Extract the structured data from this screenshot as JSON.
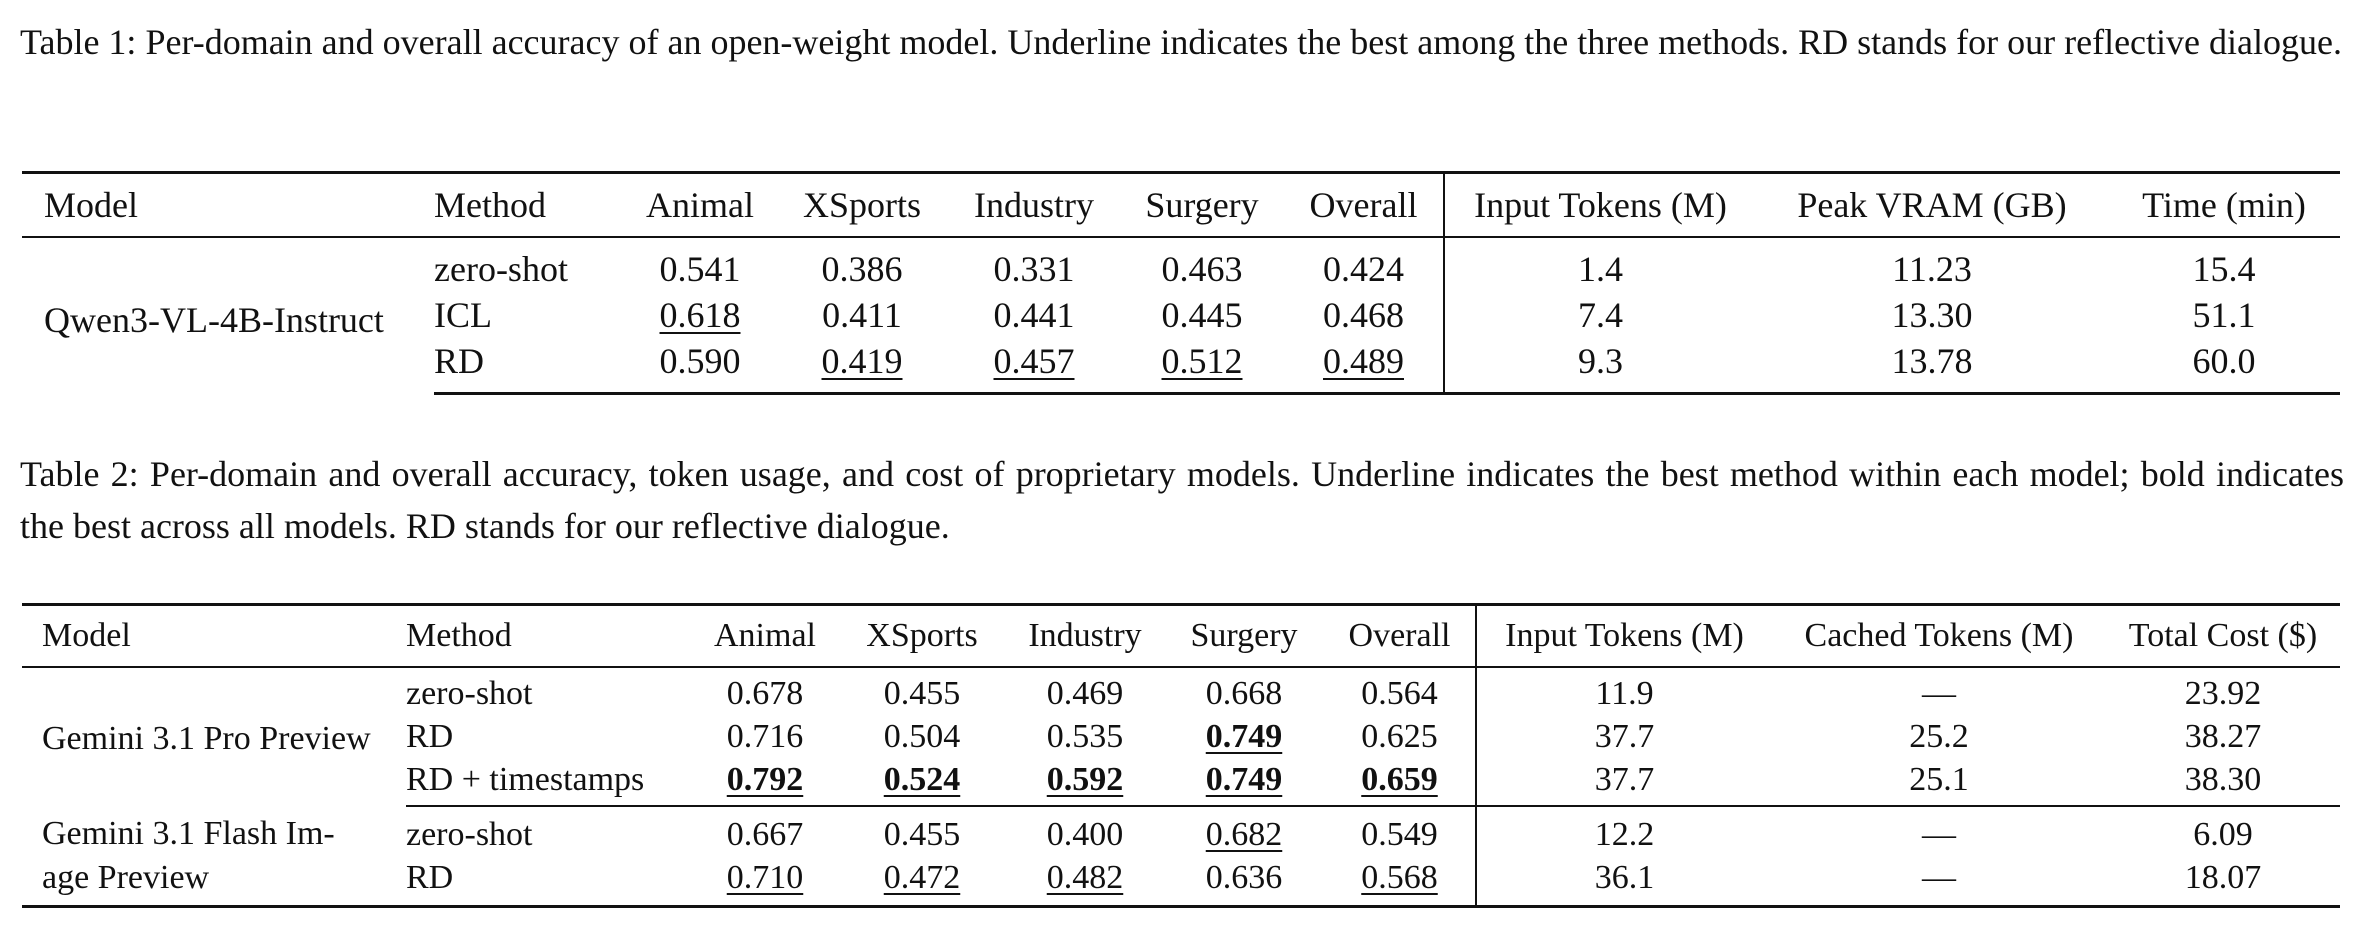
{
  "table1": {
    "caption": "Table 1: Per-domain and overall accuracy of an open-weight model. Underline indicates the best among the three methods. RD stands for our reflective dialogue.",
    "headers": [
      "Model",
      "Method",
      "Animal",
      "XSports",
      "Industry",
      "Surgery",
      "Overall",
      "Input Tokens (M)",
      "Peak VRAM (GB)",
      "Time (min)"
    ],
    "model": "Qwen3-VL-4B-Instruct",
    "rows": [
      {
        "method": "zero-shot",
        "animal": "0.541",
        "xsports": "0.386",
        "industry": "0.331",
        "surgery": "0.463",
        "overall": "0.424",
        "input_tokens": "1.4",
        "vram": "11.23",
        "time": "15.4"
      },
      {
        "method": "ICL",
        "animal": "0.618",
        "xsports": "0.411",
        "industry": "0.441",
        "surgery": "0.445",
        "overall": "0.468",
        "input_tokens": "7.4",
        "vram": "13.30",
        "time": "51.1"
      },
      {
        "method": "RD",
        "animal": "0.590",
        "xsports": "0.419",
        "industry": "0.457",
        "surgery": "0.512",
        "overall": "0.489",
        "input_tokens": "9.3",
        "vram": "13.78",
        "time": "60.0"
      }
    ]
  },
  "table2": {
    "caption": "Table 2: Per-domain and overall accuracy, token usage, and cost of proprietary models. Underline indicates the best method within each model; bold indicates the best across all models. RD stands for our reflective dialogue.",
    "headers": [
      "Model",
      "Method",
      "Animal",
      "XSports",
      "Industry",
      "Surgery",
      "Overall",
      "Input Tokens (M)",
      "Cached Tokens (M)",
      "Total Cost ($)"
    ],
    "groups": [
      {
        "model": "Gemini 3.1 Pro Preview",
        "rows": [
          {
            "method": "zero-shot",
            "animal": "0.678",
            "xsports": "0.455",
            "industry": "0.469",
            "surgery": "0.668",
            "overall": "0.564",
            "input_tokens": "11.9",
            "cached": "—",
            "cost": "23.92"
          },
          {
            "method": "RD",
            "animal": "0.716",
            "xsports": "0.504",
            "industry": "0.535",
            "surgery": "0.749",
            "overall": "0.625",
            "input_tokens": "37.7",
            "cached": "25.2",
            "cost": "38.27"
          },
          {
            "method": "RD + timestamps",
            "animal": "0.792",
            "xsports": "0.524",
            "industry": "0.592",
            "surgery": "0.749",
            "overall": "0.659",
            "input_tokens": "37.7",
            "cached": "25.1",
            "cost": "38.30"
          }
        ]
      },
      {
        "model_line1": "Gemini 3.1 Flash Im-",
        "model_line2": "age Preview",
        "rows": [
          {
            "method": "zero-shot",
            "animal": "0.667",
            "xsports": "0.455",
            "industry": "0.400",
            "surgery": "0.682",
            "overall": "0.549",
            "input_tokens": "12.2",
            "cached": "—",
            "cost": "6.09"
          },
          {
            "method": "RD",
            "animal": "0.710",
            "xsports": "0.472",
            "industry": "0.482",
            "surgery": "0.636",
            "overall": "0.568",
            "input_tokens": "36.1",
            "cached": "—",
            "cost": "18.07"
          }
        ]
      }
    ]
  }
}
